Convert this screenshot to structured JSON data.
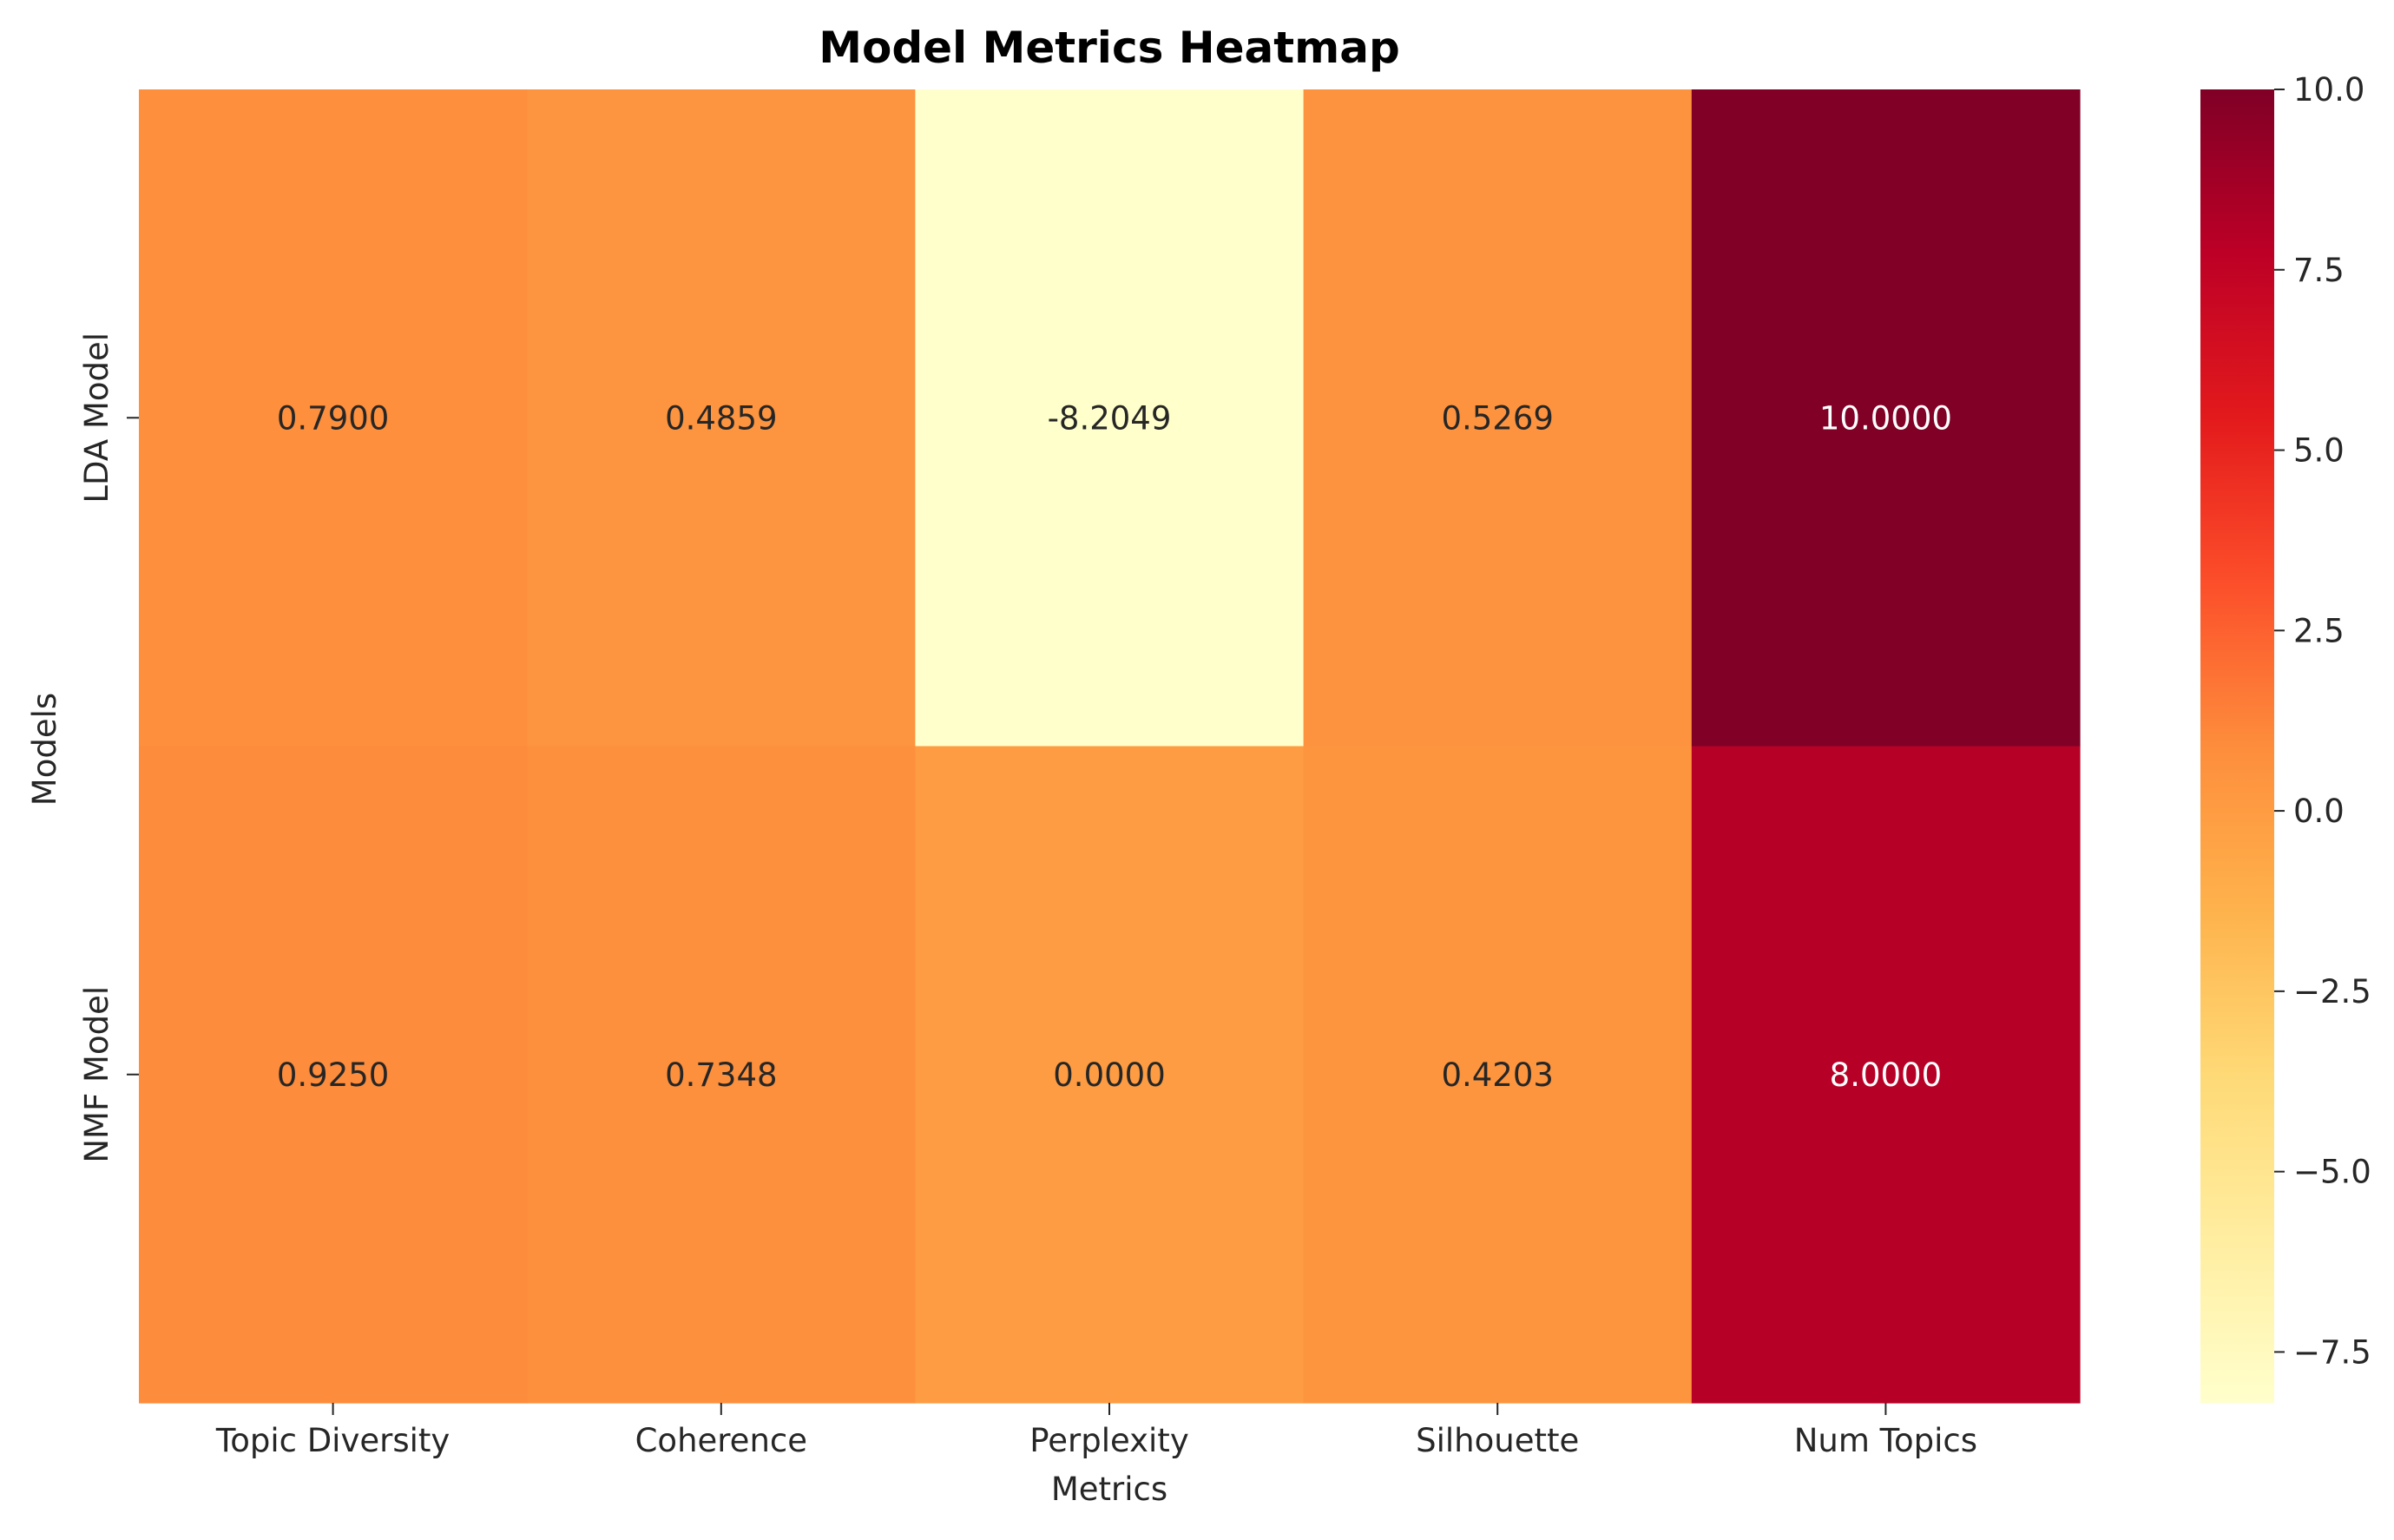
{
  "chart_data": {
    "type": "heatmap",
    "title": "Model Metrics Heatmap",
    "xlabel": "Metrics",
    "ylabel": "Models",
    "columns": [
      "Topic Diversity",
      "Coherence",
      "Perplexity",
      "Silhouette",
      "Num Topics"
    ],
    "rows": [
      "LDA Model",
      "NMF Model"
    ],
    "values": [
      [
        0.79,
        0.4859,
        -8.2049,
        0.5269,
        10.0
      ],
      [
        0.925,
        0.7348,
        0.0,
        0.4203,
        8.0
      ]
    ],
    "cell_labels": [
      [
        "0.7900",
        "0.4859",
        "-8.2049",
        "0.5269",
        "10.0000"
      ],
      [
        "0.9250",
        "0.7348",
        "0.0000",
        "0.4203",
        "8.0000"
      ]
    ],
    "colormap": "YlOrRd",
    "vmin": -8.2049,
    "vmax": 10.0,
    "colorbar_ticks": [
      10.0,
      7.5,
      5.0,
      2.5,
      0.0,
      -2.5,
      -5.0,
      -7.5
    ],
    "colorbar_tick_labels": [
      "10.0",
      "7.5",
      "5.0",
      "2.5",
      "0.0",
      "−2.5",
      "−5.0",
      "−7.5"
    ],
    "colorbar_position": "right"
  }
}
